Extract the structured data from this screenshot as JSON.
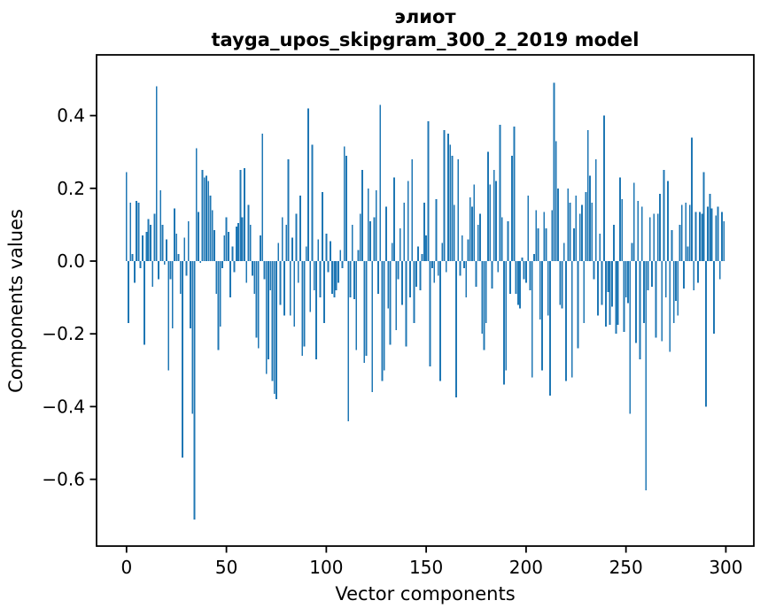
{
  "figure": {
    "title_line1": "элиот",
    "title_line2": "tayga_upos_skipgram_300_2_2019 model"
  },
  "axes": {
    "xlabel": "Vector components",
    "ylabel": "Components values",
    "xticks": {
      "values": [
        0,
        50,
        100,
        150,
        200,
        250,
        300
      ],
      "labels": [
        "0",
        "50",
        "100",
        "150",
        "200",
        "250",
        "300"
      ]
    },
    "yticks": {
      "values": [
        0.4,
        0.2,
        0.0,
        -0.2,
        -0.4,
        -0.6
      ],
      "labels": [
        "0.4",
        "0.2",
        "0.0",
        "−0.2",
        "−0.4",
        "−0.6"
      ]
    }
  },
  "colors": {
    "bar": "#1f77b4",
    "spine": "#000000",
    "background": "#ffffff"
  },
  "chart_data": {
    "type": "bar",
    "title": "элиот — tayga_upos_skipgram_300_2_2019 model",
    "xlabel": "Vector components",
    "ylabel": "Components values",
    "legend": "none",
    "grid": false,
    "x_start": 0,
    "x_end": 299,
    "xlim": [
      -15,
      314
    ],
    "ylim": [
      -0.7835,
      0.5669
    ],
    "bar_width_fraction": 0.8,
    "values": [
      0.245,
      -0.17,
      0.16,
      0.02,
      -0.06,
      0.165,
      0.16,
      -0.02,
      0.07,
      -0.23,
      0.08,
      0.115,
      0.1,
      -0.07,
      0.13,
      0.48,
      -0.05,
      0.195,
      0.1,
      -0.01,
      0.06,
      -0.3,
      -0.05,
      -0.185,
      0.145,
      0.075,
      0.02,
      -0.09,
      -0.54,
      0.065,
      -0.04,
      0.11,
      -0.185,
      -0.42,
      -0.71,
      0.31,
      0.135,
      -0.005,
      0.25,
      0.23,
      0.235,
      0.22,
      0.18,
      0.14,
      0.085,
      -0.09,
      -0.245,
      -0.18,
      -0.02,
      0.07,
      0.12,
      0.08,
      -0.1,
      0.04,
      -0.03,
      0.095,
      0.105,
      0.25,
      0.12,
      0.255,
      -0.06,
      0.155,
      0.1,
      -0.04,
      -0.09,
      -0.21,
      -0.24,
      0.07,
      0.35,
      -0.05,
      -0.31,
      -0.27,
      -0.08,
      -0.33,
      -0.365,
      -0.38,
      0.05,
      -0.12,
      0.12,
      -0.15,
      0.1,
      0.28,
      -0.15,
      0.065,
      -0.18,
      0.13,
      -0.06,
      0.18,
      -0.26,
      -0.235,
      0.04,
      0.42,
      -0.14,
      0.32,
      -0.08,
      -0.27,
      0.06,
      -0.1,
      0.19,
      -0.17,
      0.075,
      -0.03,
      0.055,
      -0.09,
      -0.1,
      -0.08,
      -0.06,
      0.03,
      -0.02,
      0.315,
      0.29,
      -0.44,
      -0.1,
      0.1,
      -0.105,
      -0.245,
      0.03,
      0.13,
      0.25,
      -0.28,
      -0.26,
      0.2,
      0.11,
      -0.36,
      0.12,
      0.195,
      -0.09,
      0.43,
      -0.33,
      -0.3,
      0.15,
      -0.13,
      -0.23,
      0.05,
      0.23,
      -0.19,
      -0.05,
      0.09,
      -0.12,
      0.16,
      -0.235,
      0.22,
      -0.1,
      0.28,
      -0.17,
      -0.07,
      0.04,
      -0.08,
      0.02,
      0.16,
      0.07,
      0.385,
      -0.29,
      -0.02,
      -0.06,
      0.17,
      -0.04,
      -0.33,
      0.05,
      0.36,
      -0.03,
      0.35,
      0.32,
      0.29,
      0.155,
      -0.375,
      0.28,
      -0.04,
      0.07,
      -0.02,
      -0.1,
      0.06,
      0.175,
      0.15,
      0.21,
      -0.07,
      0.1,
      0.13,
      -0.2,
      -0.245,
      -0.17,
      0.3,
      0.21,
      -0.075,
      0.25,
      0.22,
      -0.03,
      0.375,
      0.12,
      -0.34,
      -0.3,
      0.11,
      -0.09,
      0.29,
      0.37,
      -0.09,
      -0.12,
      -0.13,
      0.01,
      -0.05,
      -0.06,
      0.18,
      -0.08,
      -0.32,
      0.02,
      0.14,
      0.09,
      -0.16,
      -0.3,
      0.135,
      0.09,
      -0.15,
      -0.37,
      0.14,
      0.49,
      0.33,
      0.2,
      -0.12,
      -0.13,
      0.05,
      -0.33,
      0.2,
      0.16,
      -0.32,
      0.09,
      0.18,
      -0.24,
      0.13,
      0.155,
      -0.17,
      0.19,
      0.36,
      0.235,
      0.16,
      -0.05,
      0.28,
      -0.15,
      0.075,
      -0.12,
      0.4,
      -0.18,
      -0.085,
      -0.175,
      -0.125,
      0.1,
      -0.2,
      -0.175,
      0.23,
      0.17,
      -0.195,
      -0.1,
      -0.115,
      -0.42,
      0.05,
      0.215,
      -0.225,
      0.165,
      -0.27,
      0.15,
      -0.17,
      -0.63,
      -0.08,
      0.12,
      -0.07,
      0.13,
      -0.21,
      0.13,
      0.185,
      -0.22,
      0.25,
      -0.1,
      0.22,
      -0.25,
      0.085,
      -0.17,
      -0.11,
      -0.15,
      0.1,
      0.155,
      -0.075,
      0.16,
      0.04,
      0.155,
      0.34,
      -0.08,
      0.135,
      -0.06,
      0.135,
      0.13,
      0.245,
      -0.4,
      0.15,
      0.185,
      0.145,
      -0.2,
      0.125,
      0.15,
      -0.05,
      0.135,
      0.11
    ]
  }
}
